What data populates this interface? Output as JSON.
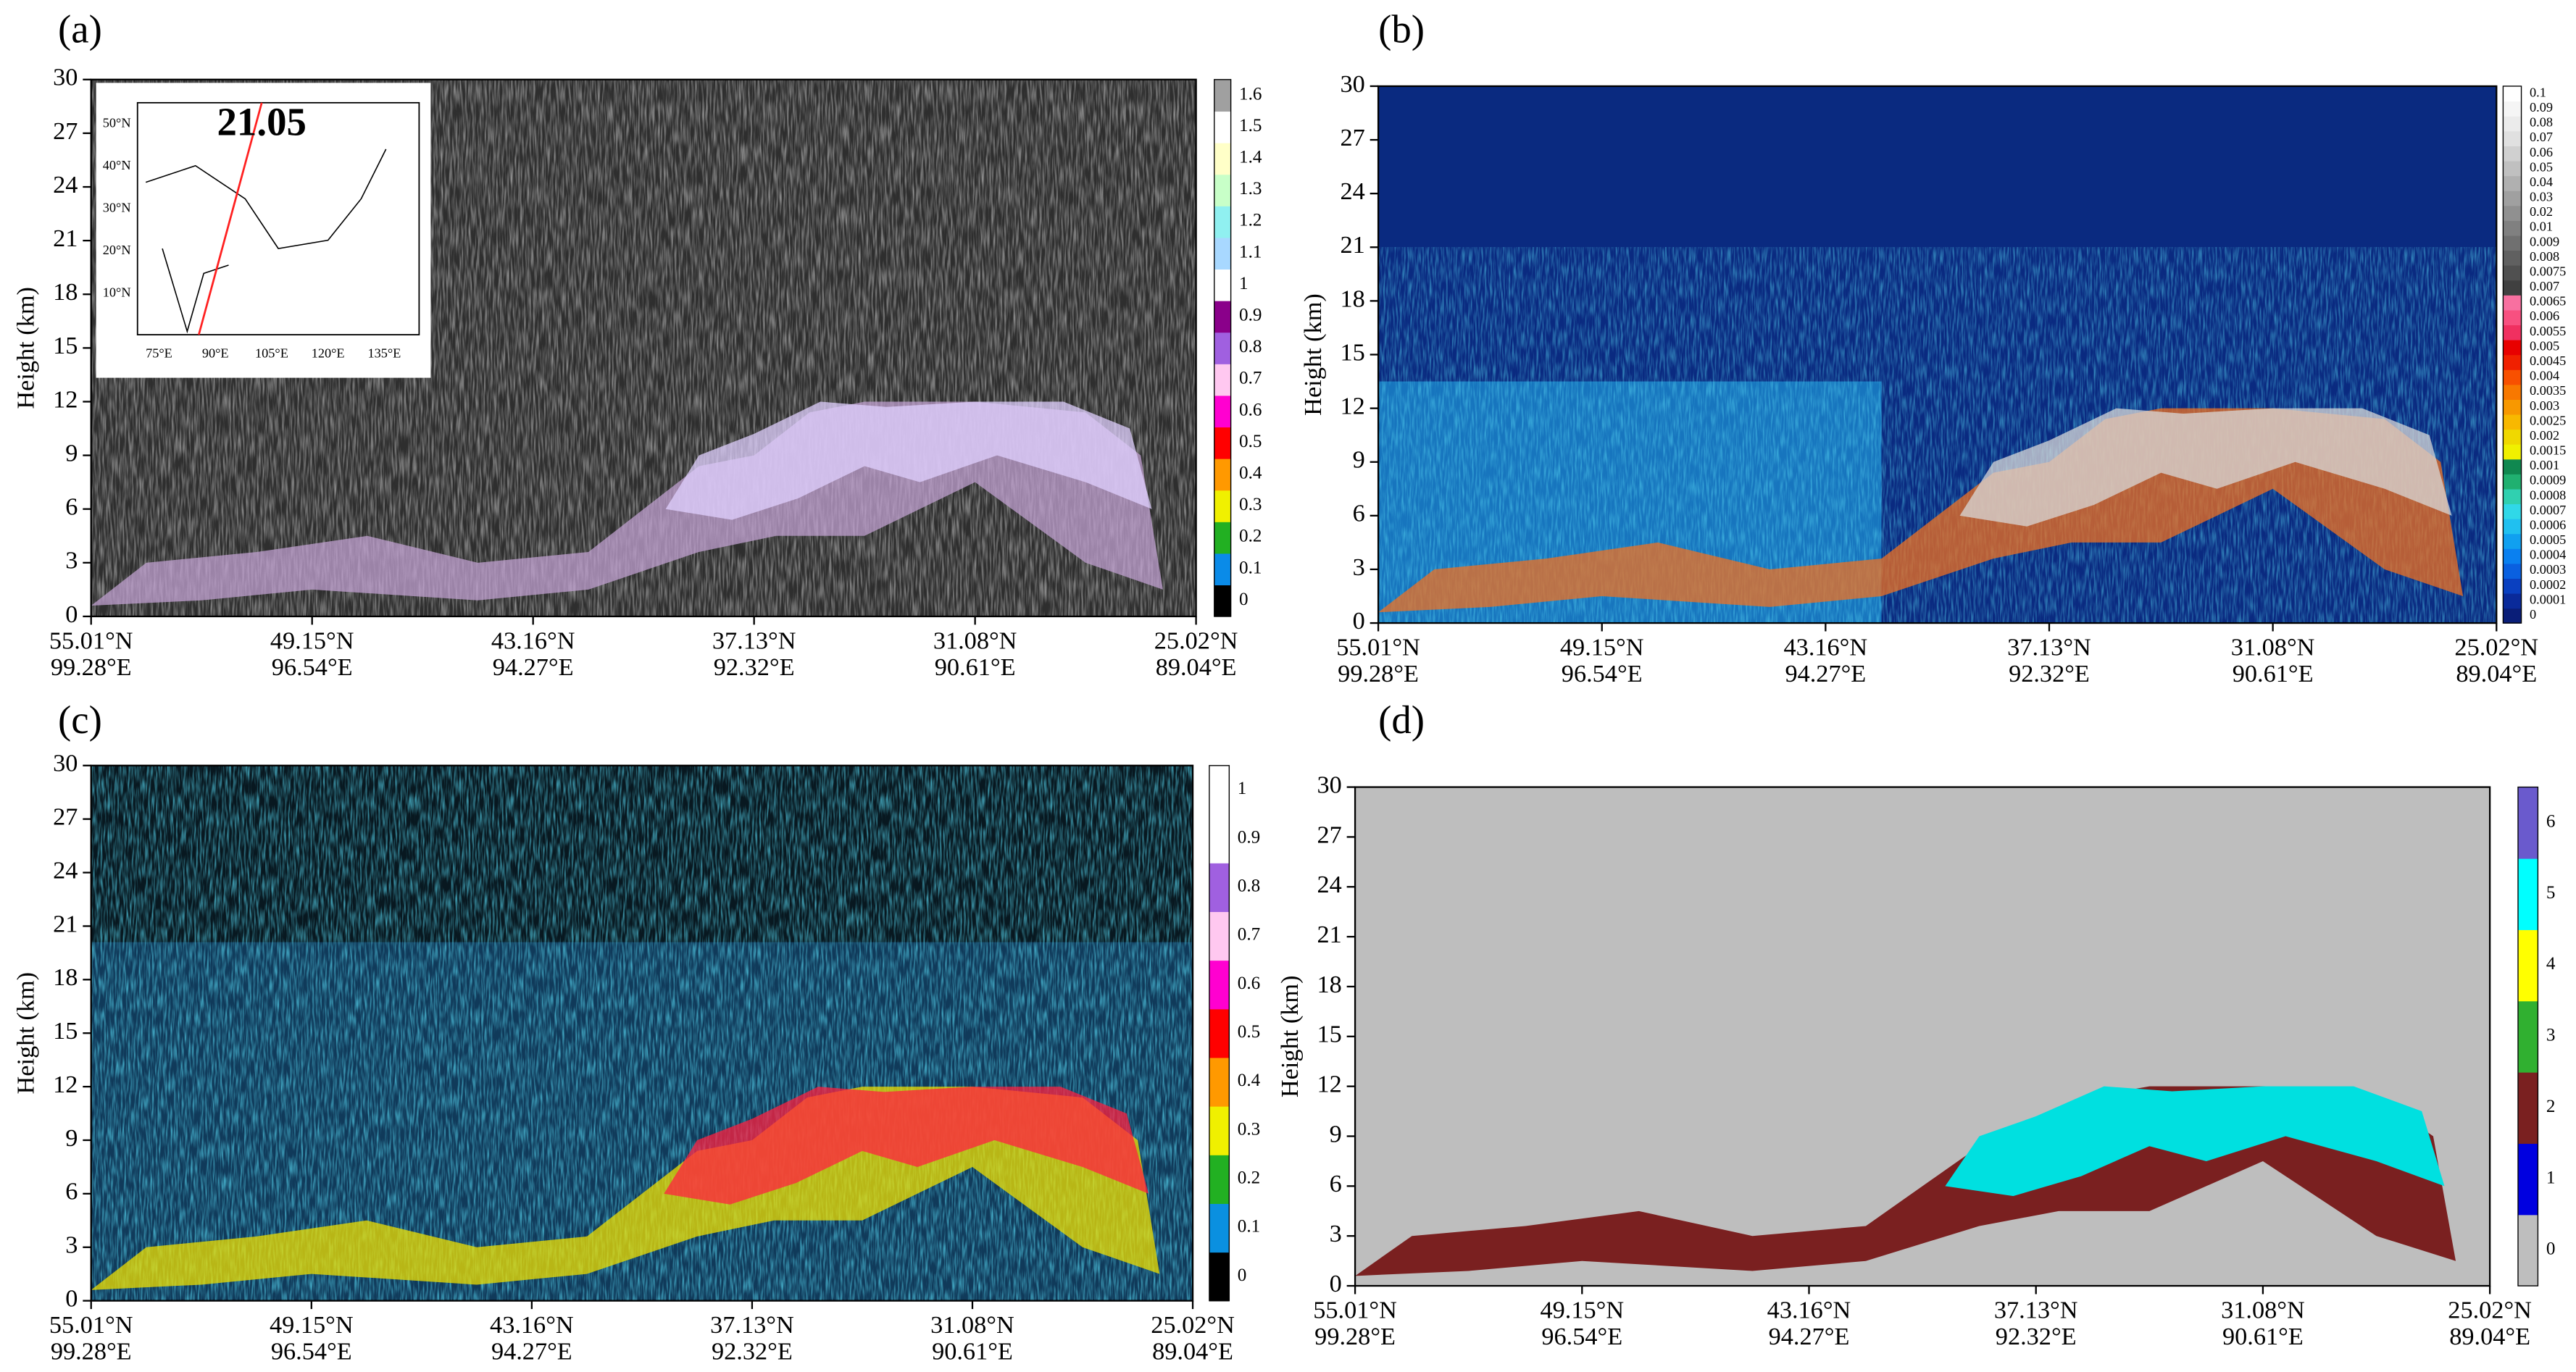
{
  "chart_data": [
    {
      "type": "heatmap",
      "label": "(a)",
      "ylabel": "Height (km)",
      "ylim": [
        0,
        30
      ],
      "yticks": [
        0,
        3,
        6,
        9,
        12,
        15,
        18,
        21,
        24,
        27,
        30
      ],
      "lat": [
        "55.01°N",
        "49.15°N",
        "43.16°N",
        "37.13°N",
        "31.08°N",
        "25.02°N"
      ],
      "lon": [
        "99.28°E",
        "96.54°E",
        "94.27°E",
        "92.32°E",
        "90.61°E",
        "89.04°E"
      ],
      "colorbar": {
        "ticks": [
          0,
          0.1,
          0.2,
          0.3,
          0.4,
          0.5,
          0.6,
          0.7,
          0.8,
          0.9,
          1,
          1.1,
          1.2,
          1.3,
          1.4,
          1.5,
          1.6
        ],
        "colors": [
          "#000000",
          "#0a8be8",
          "#22b022",
          "#f0f000",
          "#ff9900",
          "#ff0000",
          "#ff00d0",
          "#ffc8f0",
          "#a060e0",
          "#8a008a",
          "#ffffff",
          "#a8d8ff",
          "#90f0f0",
          "#c8ffc8",
          "#ffffc8",
          "#ffffff",
          "#a0a0a0"
        ]
      },
      "inset": {
        "text": "21.05",
        "lats": [
          "10°N",
          "20°N",
          "30°N",
          "40°N",
          "50°N"
        ],
        "lons": [
          "75°E",
          "90°E",
          "105°E",
          "120°E",
          "135°E"
        ]
      }
    },
    {
      "type": "heatmap",
      "label": "(b)",
      "ylabel": "Height (km)",
      "ylim": [
        0,
        30
      ],
      "yticks": [
        0,
        3,
        6,
        9,
        12,
        15,
        18,
        21,
        24,
        27,
        30
      ],
      "lat": [
        "55.01°N",
        "49.15°N",
        "43.16°N",
        "37.13°N",
        "31.08°N",
        "25.02°N"
      ],
      "lon": [
        "99.28°E",
        "96.54°E",
        "94.27°E",
        "92.32°E",
        "90.61°E",
        "89.04°E"
      ],
      "colorbar": {
        "ticks": [
          0,
          0.0001,
          0.0002,
          0.0003,
          0.0004,
          0.0005,
          0.0006,
          0.0007,
          0.0008,
          0.0009,
          0.001,
          0.0015,
          0.002,
          0.0025,
          0.003,
          0.0035,
          0.004,
          0.0045,
          0.005,
          0.0055,
          0.006,
          0.0065,
          0.007,
          0.0075,
          0.008,
          0.009,
          0.01,
          0.02,
          0.03,
          0.04,
          0.05,
          0.06,
          0.07,
          0.08,
          0.09,
          0.1
        ],
        "colors": [
          "#0a1e78",
          "#0a2a9a",
          "#0a40c0",
          "#0a60e0",
          "#0a80f0",
          "#10a0f0",
          "#20c0f0",
          "#30d8e8",
          "#30d0b0",
          "#20b070",
          "#108850",
          "#f0f000",
          "#f0d800",
          "#f8b800",
          "#f89800",
          "#f87800",
          "#f85000",
          "#f02000",
          "#e80000",
          "#f03060",
          "#f85080",
          "#f870a0",
          "#404040",
          "#505050",
          "#606060",
          "#707070",
          "#808080",
          "#909090",
          "#a0a0a0",
          "#b0b0b0",
          "#c0c0c0",
          "#d0d0d0",
          "#e0e0e0",
          "#ebebeb",
          "#f5f5f5",
          "#ffffff"
        ]
      }
    },
    {
      "type": "heatmap",
      "label": "(c)",
      "ylabel": "Height (km)",
      "ylim": [
        0,
        30
      ],
      "yticks": [
        0,
        3,
        6,
        9,
        12,
        15,
        18,
        21,
        24,
        27,
        30
      ],
      "lat": [
        "55.01°N",
        "49.15°N",
        "43.16°N",
        "37.13°N",
        "31.08°N",
        "25.02°N"
      ],
      "lon": [
        "99.28°E",
        "96.54°E",
        "94.27°E",
        "92.32°E",
        "90.61°E",
        "89.04°E"
      ],
      "colorbar": {
        "ticks": [
          0,
          0.1,
          0.2,
          0.3,
          0.4,
          0.5,
          0.6,
          0.7,
          0.8,
          0.9,
          1
        ],
        "colors": [
          "#000000",
          "#0a90e0",
          "#22b022",
          "#f0f000",
          "#ff9900",
          "#ff0000",
          "#ff00d0",
          "#ffc8f0",
          "#a060e0",
          "#ffffff",
          "#ffffff"
        ]
      }
    },
    {
      "type": "heatmap",
      "label": "(d)",
      "ylabel": "Height (km)",
      "ylim": [
        0,
        30
      ],
      "yticks": [
        0,
        3,
        6,
        9,
        12,
        15,
        18,
        21,
        24,
        27,
        30
      ],
      "lat": [
        "55.01°N",
        "49.15°N",
        "43.16°N",
        "37.13°N",
        "31.08°N",
        "25.02°N"
      ],
      "lon": [
        "99.28°E",
        "96.54°E",
        "94.27°E",
        "92.32°E",
        "90.61°E",
        "89.04°E"
      ],
      "colorbar": {
        "ticks": [
          0,
          1,
          2,
          3,
          4,
          5,
          6
        ],
        "colors": [
          "#bebebe",
          "#0000e0",
          "#7a2020",
          "#30b030",
          "#ffff00",
          "#00ffff",
          "#6a5acd"
        ]
      }
    }
  ]
}
